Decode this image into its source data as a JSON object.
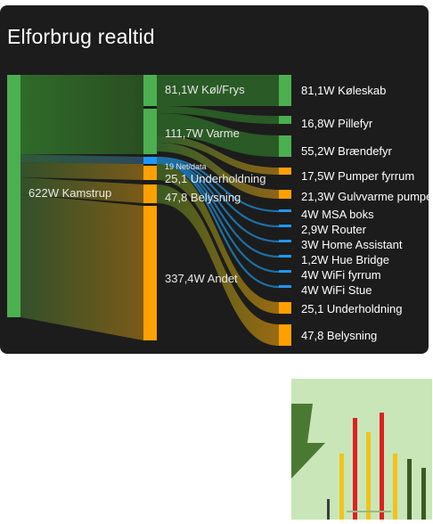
{
  "card": {
    "title": "Elforbrug realtid",
    "source": {
      "label": "622W Kamstrup",
      "color": "#4caf50"
    },
    "groups": [
      {
        "label": "81,1W Køl/Frys",
        "color": "#4caf50"
      },
      {
        "label": "111,7W Varme",
        "color": "#4caf50"
      },
      {
        "label": "19 Net/data",
        "color": "#2196f3"
      },
      {
        "label": "25,1 Underholdning",
        "color": "#ffa000"
      },
      {
        "label": "47,8 Belysning",
        "color": "#ffa000"
      },
      {
        "label": "337,4W Andet",
        "color": "#ffa000"
      }
    ],
    "devices": [
      {
        "label": "81,1W Køleskab",
        "color": "#4caf50"
      },
      {
        "label": "16,8W Pillefyr",
        "color": "#4caf50"
      },
      {
        "label": "55,2W Brændefyr",
        "color": "#4caf50"
      },
      {
        "label": "17,5W Pumper fyrrum",
        "color": "#ffa000"
      },
      {
        "label": "21,3W Gulvvarme pumpe",
        "color": "#ffa000"
      },
      {
        "label": "4W MSA boks",
        "color": "#2196f3"
      },
      {
        "label": "2,9W Router",
        "color": "#2196f3"
      },
      {
        "label": "3W Home Assistant",
        "color": "#2196f3"
      },
      {
        "label": "1,2W Hue Bridge",
        "color": "#2196f3"
      },
      {
        "label": "4W WiFi fyrrum",
        "color": "#2196f3"
      },
      {
        "label": "4W WiFi Stue",
        "color": "#2196f3"
      },
      {
        "label": "25,1 Underholdning",
        "color": "#ffa000"
      },
      {
        "label": "47,8 Belysning",
        "color": "#ffa000"
      }
    ]
  },
  "logo": {
    "icon": "energy-bars-logo-icon",
    "background": "#c8e6b8"
  }
}
